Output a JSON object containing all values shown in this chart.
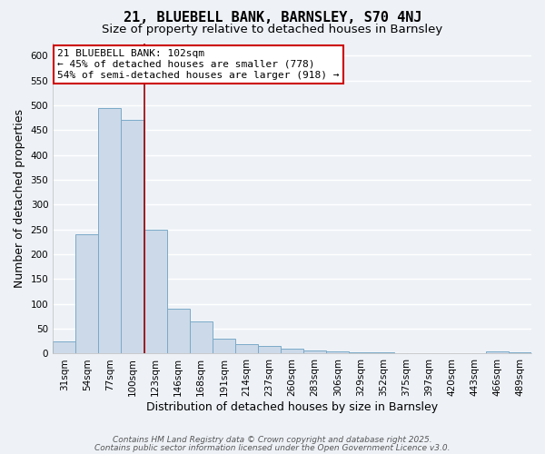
{
  "title": "21, BLUEBELL BANK, BARNSLEY, S70 4NJ",
  "subtitle": "Size of property relative to detached houses in Barnsley",
  "xlabel": "Distribution of detached houses by size in Barnsley",
  "ylabel": "Number of detached properties",
  "bar_labels": [
    "31sqm",
    "54sqm",
    "77sqm",
    "100sqm",
    "123sqm",
    "146sqm",
    "168sqm",
    "191sqm",
    "214sqm",
    "237sqm",
    "260sqm",
    "283sqm",
    "306sqm",
    "329sqm",
    "352sqm",
    "375sqm",
    "397sqm",
    "420sqm",
    "443sqm",
    "466sqm",
    "489sqm"
  ],
  "bar_values": [
    25,
    240,
    495,
    470,
    250,
    90,
    65,
    30,
    20,
    15,
    10,
    7,
    4,
    2,
    2,
    1,
    1,
    0,
    0,
    5,
    2
  ],
  "bar_color": "#ccd9e8",
  "bar_edgecolor": "#7aaac8",
  "ylim": [
    0,
    625
  ],
  "yticks": [
    0,
    50,
    100,
    150,
    200,
    250,
    300,
    350,
    400,
    450,
    500,
    550,
    600
  ],
  "vline_x": 3.5,
  "vline_color": "#990000",
  "annotation_title": "21 BLUEBELL BANK: 102sqm",
  "annotation_line1": "← 45% of detached houses are smaller (778)",
  "annotation_line2": "54% of semi-detached houses are larger (918) →",
  "annotation_box_color": "#ffffff",
  "annotation_box_edgecolor": "#cc0000",
  "footer1": "Contains HM Land Registry data © Crown copyright and database right 2025.",
  "footer2": "Contains public sector information licensed under the Open Government Licence v3.0.",
  "background_color": "#eef2f7",
  "grid_color": "#ffffff",
  "title_fontsize": 11,
  "subtitle_fontsize": 9.5,
  "axis_label_fontsize": 9,
  "tick_fontsize": 7.5,
  "annotation_fontsize": 8,
  "footer_fontsize": 6.5
}
